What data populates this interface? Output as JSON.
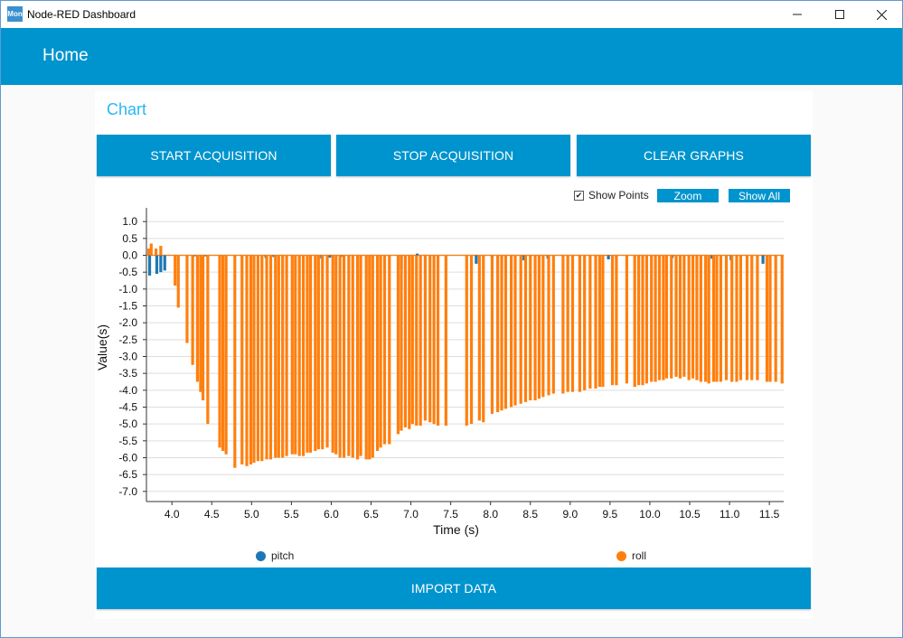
{
  "window": {
    "title": "Node-RED Dashboard",
    "icon_text": "Mon"
  },
  "header": {
    "title": "Home"
  },
  "card": {
    "title": "Chart"
  },
  "buttons": {
    "start": "START ACQUISITION",
    "stop": "STOP ACQUISITION",
    "clear": "CLEAR GRAPHS",
    "import": "IMPORT DATA"
  },
  "chart_controls": {
    "show_points_label": "Show Points",
    "show_points_checked": true,
    "zoom_label": "Zoom",
    "show_all_label": "Show All"
  },
  "colors": {
    "accent": "#0094ce",
    "card_title": "#29b6f6",
    "pitch": "#1f77b4",
    "roll": "#ff7f0e"
  },
  "chart_data": {
    "type": "line",
    "xlabel": "Time (s)",
    "ylabel": "Value(s)",
    "xlim": [
      3.68,
      11.68
    ],
    "ylim": [
      -7.3,
      1.3
    ],
    "x_ticks": [
      "4.0",
      "4.5",
      "5.0",
      "5.5",
      "6.0",
      "6.5",
      "7.0",
      "7.5",
      "8.0",
      "8.5",
      "9.0",
      "9.5",
      "10.0",
      "10.5",
      "11.0",
      "11.5"
    ],
    "y_ticks": [
      "1.0",
      "0.5",
      "0.0",
      "-0.5",
      "-1.0",
      "-1.5",
      "-2.0",
      "-2.5",
      "-3.0",
      "-3.5",
      "-4.0",
      "-4.5",
      "-5.0",
      "-5.5",
      "-6.0",
      "-6.5",
      "-7.0"
    ],
    "legend_placement": "bottom",
    "series": [
      {
        "name": "pitch",
        "x": [
          3.72,
          3.81,
          3.86,
          3.91,
          4.28,
          4.37,
          4.42,
          5.18,
          5.28,
          5.88,
          5.98,
          6.12,
          6.88,
          7.08,
          7.82,
          8.02,
          8.42,
          8.72,
          9.48,
          9.58,
          10.28,
          10.78,
          11.02,
          11.42
        ],
        "values": [
          -0.6,
          -0.55,
          -0.5,
          -0.45,
          -0.03,
          -0.02,
          -0.03,
          -0.08,
          -0.05,
          -0.1,
          -0.07,
          -0.05,
          -0.4,
          0.05,
          -0.25,
          -0.1,
          -0.15,
          -0.1,
          -0.12,
          -0.1,
          -0.08,
          -0.1,
          -0.15,
          -0.25
        ]
      },
      {
        "name": "roll",
        "x": [
          3.71,
          3.74,
          3.8,
          3.86,
          4.04,
          4.08,
          4.19,
          4.26,
          4.32,
          4.36,
          4.39,
          4.45,
          4.6,
          4.64,
          4.68,
          4.79,
          4.88,
          4.94,
          4.99,
          5.03,
          5.08,
          5.13,
          5.19,
          5.24,
          5.3,
          5.34,
          5.39,
          5.44,
          5.51,
          5.55,
          5.6,
          5.65,
          5.7,
          5.74,
          5.8,
          5.84,
          5.89,
          5.95,
          6.02,
          6.06,
          6.11,
          6.16,
          6.22,
          6.27,
          6.33,
          6.37,
          6.44,
          6.48,
          6.52,
          6.58,
          6.62,
          6.67,
          6.73,
          6.84,
          6.88,
          6.93,
          6.98,
          7.02,
          7.07,
          7.12,
          7.18,
          7.24,
          7.29,
          7.34,
          7.44,
          7.7,
          7.76,
          7.86,
          7.91,
          8.02,
          8.09,
          8.14,
          8.19,
          8.26,
          8.31,
          8.38,
          8.44,
          8.5,
          8.56,
          8.61,
          8.66,
          8.73,
          8.79,
          8.91,
          8.97,
          9.03,
          9.12,
          9.18,
          9.25,
          9.32,
          9.37,
          9.41,
          9.53,
          9.58,
          9.71,
          9.81,
          9.86,
          9.91,
          9.96,
          10.02,
          10.07,
          10.12,
          10.17,
          10.21,
          10.27,
          10.33,
          10.38,
          10.43,
          10.49,
          10.54,
          10.59,
          10.64,
          10.7,
          10.74,
          10.8,
          10.84,
          10.89,
          10.96,
          11.03,
          11.09,
          11.14,
          11.22,
          11.28,
          11.35,
          11.47,
          11.51,
          11.58,
          11.66
        ],
        "values": [
          0.2,
          0.35,
          0.2,
          0.28,
          -0.9,
          -1.55,
          -2.6,
          -3.25,
          -3.75,
          -4.05,
          -4.3,
          -5.0,
          -5.7,
          -5.8,
          -5.9,
          -6.3,
          -6.2,
          -6.25,
          -6.2,
          -6.15,
          -6.1,
          -6.1,
          -6.05,
          -6.05,
          -6.0,
          -6.0,
          -6.0,
          -5.95,
          -5.9,
          -5.9,
          -5.95,
          -5.95,
          -5.85,
          -5.85,
          -5.8,
          -5.75,
          -5.75,
          -5.7,
          -5.85,
          -5.9,
          -6.0,
          -6.0,
          -5.95,
          -6.0,
          -6.05,
          -5.95,
          -6.05,
          -6.05,
          -6.0,
          -5.8,
          -5.7,
          -5.6,
          -5.6,
          -5.3,
          -5.2,
          -5.1,
          -5.15,
          -5.0,
          -5.05,
          -5.05,
          -4.9,
          -4.95,
          -5.0,
          -5.05,
          -5.05,
          -5.05,
          -5.0,
          -4.9,
          -4.95,
          -4.7,
          -4.65,
          -4.6,
          -4.55,
          -4.5,
          -4.45,
          -4.4,
          -4.35,
          -4.3,
          -4.3,
          -4.25,
          -4.2,
          -4.15,
          -4.1,
          -4.1,
          -4.05,
          -4.05,
          -4.05,
          -4.0,
          -3.95,
          -3.95,
          -3.9,
          -3.9,
          -3.85,
          -3.85,
          -3.8,
          -3.9,
          -3.85,
          -3.85,
          -3.8,
          -3.75,
          -3.75,
          -3.7,
          -3.7,
          -3.65,
          -3.65,
          -3.6,
          -3.65,
          -3.6,
          -3.7,
          -3.65,
          -3.7,
          -3.75,
          -3.75,
          -3.8,
          -3.75,
          -3.75,
          -3.75,
          -3.7,
          -3.75,
          -3.75,
          -3.7,
          -3.7,
          -3.7,
          -3.7,
          -3.75,
          -3.75,
          -3.75,
          -3.8
        ]
      }
    ]
  }
}
